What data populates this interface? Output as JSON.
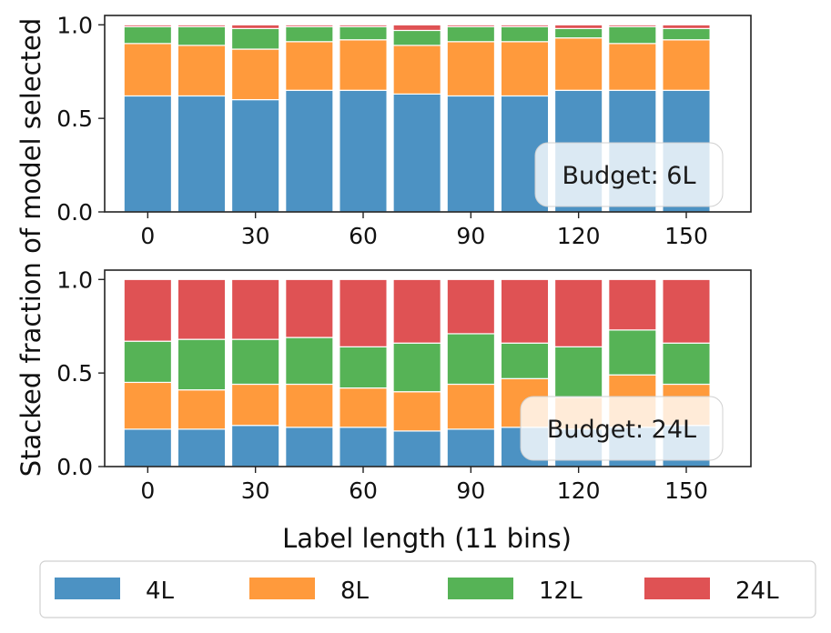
{
  "colors": {
    "4L": "#4c92c3",
    "8L": "#ff9a3c",
    "12L": "#56b356",
    "24L": "#df5254"
  },
  "ylabel": "Stacked fraction of model selected",
  "xlabel": "Label length (11 bins)",
  "legend": [
    "4L",
    "8L",
    "12L",
    "24L"
  ],
  "chart_data": [
    {
      "type": "bar",
      "stacked": true,
      "annotation": "Budget: 6L",
      "x": [
        0,
        15,
        30,
        45,
        60,
        75,
        90,
        105,
        120,
        135,
        150
      ],
      "xticks": [
        "0",
        "30",
        "60",
        "90",
        "120",
        "150"
      ],
      "yticks": [
        "0.0",
        "0.5",
        "1.0"
      ],
      "ylim": [
        0,
        1.05
      ],
      "series": [
        {
          "name": "4L",
          "values": [
            0.62,
            0.62,
            0.6,
            0.65,
            0.65,
            0.63,
            0.62,
            0.62,
            0.65,
            0.65,
            0.65
          ]
        },
        {
          "name": "8L",
          "values": [
            0.28,
            0.27,
            0.27,
            0.26,
            0.27,
            0.26,
            0.29,
            0.29,
            0.28,
            0.25,
            0.27
          ]
        },
        {
          "name": "12L",
          "values": [
            0.09,
            0.1,
            0.11,
            0.08,
            0.07,
            0.08,
            0.08,
            0.08,
            0.05,
            0.09,
            0.06
          ]
        },
        {
          "name": "24L",
          "values": [
            0.01,
            0.01,
            0.02,
            0.01,
            0.01,
            0.03,
            0.01,
            0.01,
            0.02,
            0.01,
            0.02
          ]
        }
      ]
    },
    {
      "type": "bar",
      "stacked": true,
      "annotation": "Budget: 24L",
      "x": [
        0,
        15,
        30,
        45,
        60,
        75,
        90,
        105,
        120,
        135,
        150
      ],
      "xticks": [
        "0",
        "30",
        "60",
        "90",
        "120",
        "150"
      ],
      "yticks": [
        "0.0",
        "0.5",
        "1.0"
      ],
      "ylim": [
        0,
        1.05
      ],
      "series": [
        {
          "name": "4L",
          "values": [
            0.2,
            0.2,
            0.22,
            0.21,
            0.21,
            0.19,
            0.2,
            0.21,
            0.2,
            0.21,
            0.22
          ]
        },
        {
          "name": "8L",
          "values": [
            0.25,
            0.21,
            0.22,
            0.23,
            0.21,
            0.21,
            0.24,
            0.26,
            0.17,
            0.28,
            0.22
          ]
        },
        {
          "name": "12L",
          "values": [
            0.22,
            0.27,
            0.24,
            0.25,
            0.22,
            0.26,
            0.27,
            0.19,
            0.27,
            0.24,
            0.22
          ]
        },
        {
          "name": "24L",
          "values": [
            0.33,
            0.32,
            0.32,
            0.31,
            0.36,
            0.34,
            0.29,
            0.34,
            0.36,
            0.27,
            0.34
          ]
        }
      ]
    }
  ]
}
